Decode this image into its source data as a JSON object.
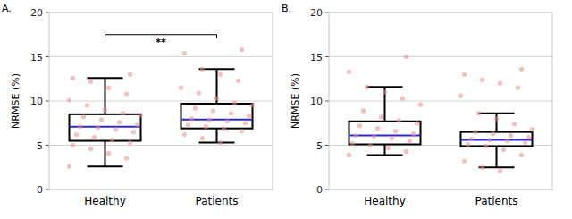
{
  "chart_data": [
    {
      "type": "box",
      "title": "A.",
      "y_label": "NRMSE (%)",
      "categories": [
        "Healthy",
        "Patients"
      ],
      "ylim": [
        0,
        20
      ],
      "yticks": [
        0,
        5,
        10,
        15,
        20
      ],
      "grid": true,
      "color": "#e98a8a",
      "boxes": [
        {
          "min": 2.6,
          "q1": 5.5,
          "median": 7.1,
          "q3": 8.5,
          "max": 12.6
        },
        {
          "min": 5.3,
          "q1": 6.9,
          "median": 7.9,
          "q3": 9.7,
          "max": 13.6
        }
      ],
      "points": [
        [
          2.6,
          3.5,
          4.1,
          4.6,
          5.0,
          5.3,
          5.6,
          5.9,
          6.2,
          6.5,
          6.8,
          7.0,
          7.1,
          7.3,
          7.6,
          7.9,
          8.2,
          8.4,
          8.6,
          9.0,
          9.5,
          10.1,
          10.8,
          11.5,
          12.2,
          12.6,
          13.0
        ],
        [
          5.3,
          5.8,
          6.2,
          6.6,
          6.9,
          7.1,
          7.3,
          7.5,
          7.7,
          7.9,
          8.0,
          8.3,
          8.6,
          8.9,
          9.2,
          9.5,
          9.8,
          10.3,
          10.9,
          11.5,
          12.3,
          13.0,
          13.6,
          15.4,
          15.8
        ]
      ],
      "annotations": [
        {
          "text": "**",
          "from": 0,
          "to": 1,
          "y": 17.5
        }
      ]
    },
    {
      "type": "box",
      "title": "B.",
      "y_label": "NRMSE (%)",
      "categories": [
        "Healthy",
        "Patients"
      ],
      "ylim": [
        0,
        20
      ],
      "yticks": [
        0,
        5,
        10,
        15,
        20
      ],
      "grid": true,
      "color": "#e98a8a",
      "boxes": [
        {
          "min": 3.9,
          "q1": 5.1,
          "median": 6.1,
          "q3": 7.7,
          "max": 11.6
        },
        {
          "min": 2.5,
          "q1": 4.9,
          "median": 5.6,
          "q3": 6.5,
          "max": 8.6
        }
      ],
      "points": [
        [
          3.9,
          4.3,
          4.7,
          5.0,
          5.2,
          5.5,
          5.8,
          6.0,
          6.1,
          6.3,
          6.6,
          6.9,
          7.2,
          7.5,
          7.8,
          8.2,
          8.9,
          9.6,
          10.3,
          11.0,
          11.6,
          13.3,
          15.0
        ],
        [
          2.1,
          2.5,
          3.2,
          3.9,
          4.5,
          4.9,
          5.1,
          5.3,
          5.5,
          5.6,
          5.7,
          5.9,
          6.1,
          6.3,
          6.5,
          6.8,
          7.4,
          8.0,
          8.6,
          10.6,
          11.5,
          12.0,
          12.4,
          13.0,
          13.6
        ]
      ]
    }
  ]
}
